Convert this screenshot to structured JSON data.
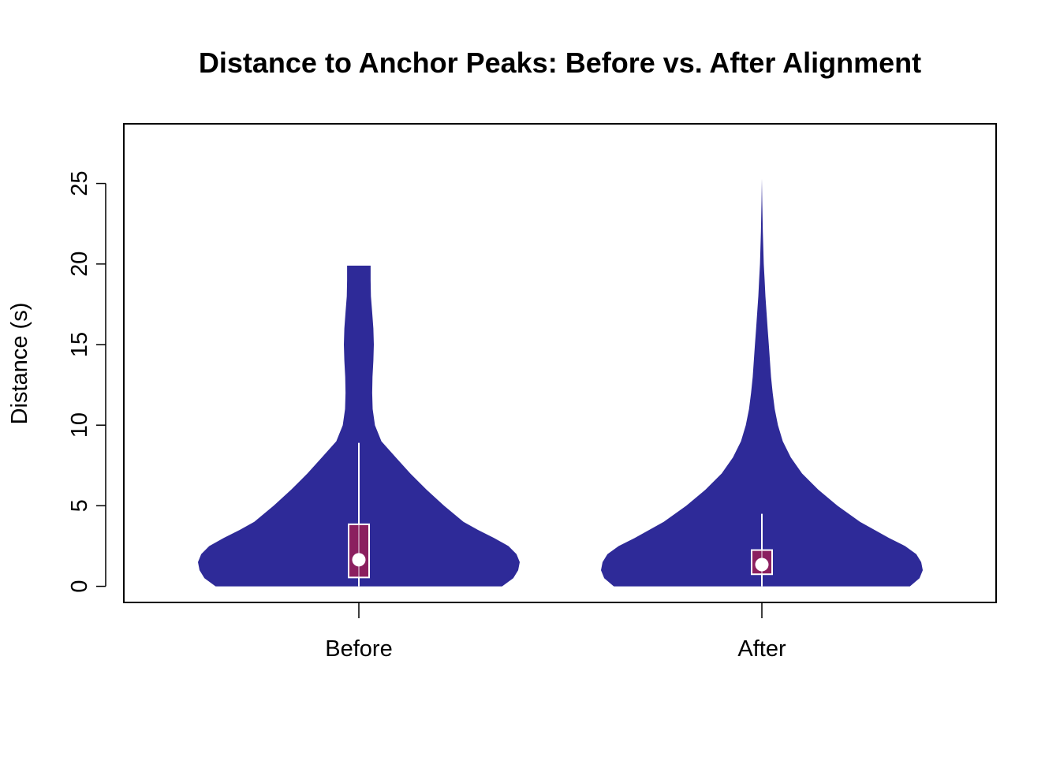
{
  "chart_data": {
    "type": "violin",
    "title": "Distance to Anchor Peaks: Before vs. After Alignment",
    "xlabel": "",
    "ylabel": "Distance (s)",
    "categories": [
      "Before",
      "After"
    ],
    "ylim": [
      -1,
      28.7
    ],
    "yticks": [
      0,
      5,
      10,
      15,
      20,
      25
    ],
    "grid": false,
    "colors": {
      "violin": "#2e2a98",
      "box": "#8b1f5f",
      "whisker": "#ffffff",
      "median": "#ffffff"
    },
    "series": [
      {
        "category": "Before",
        "min": 0,
        "q1": 0.55,
        "median": 1.65,
        "q3": 3.85,
        "whisker_low": 0,
        "whisker_high": 8.9,
        "max": 19.9,
        "density": [
          [
            0,
            0.89
          ],
          [
            0.5,
            0.96
          ],
          [
            1,
            0.99
          ],
          [
            1.5,
            1.0
          ],
          [
            2,
            0.98
          ],
          [
            2.5,
            0.93
          ],
          [
            3,
            0.84
          ],
          [
            3.5,
            0.74
          ],
          [
            4,
            0.65
          ],
          [
            5,
            0.53
          ],
          [
            6,
            0.42
          ],
          [
            7,
            0.32
          ],
          [
            8,
            0.23
          ],
          [
            9,
            0.14
          ],
          [
            10,
            0.1
          ],
          [
            11,
            0.086
          ],
          [
            12,
            0.083
          ],
          [
            13,
            0.085
          ],
          [
            14,
            0.09
          ],
          [
            15,
            0.093
          ],
          [
            16,
            0.09
          ],
          [
            17,
            0.083
          ],
          [
            18,
            0.075
          ],
          [
            19,
            0.073
          ],
          [
            19.9,
            0.073
          ]
        ]
      },
      {
        "category": "After",
        "min": 0,
        "q1": 0.75,
        "median": 1.35,
        "q3": 2.25,
        "whisker_low": 0,
        "whisker_high": 4.5,
        "max": 25.3,
        "density": [
          [
            0,
            0.92
          ],
          [
            0.5,
            0.98
          ],
          [
            1,
            1.0
          ],
          [
            1.5,
            0.99
          ],
          [
            2,
            0.96
          ],
          [
            2.5,
            0.89
          ],
          [
            3,
            0.79
          ],
          [
            3.5,
            0.7
          ],
          [
            4,
            0.61
          ],
          [
            5,
            0.47
          ],
          [
            6,
            0.35
          ],
          [
            7,
            0.25
          ],
          [
            8,
            0.18
          ],
          [
            9,
            0.13
          ],
          [
            10,
            0.1
          ],
          [
            11,
            0.08
          ],
          [
            12,
            0.067
          ],
          [
            13,
            0.057
          ],
          [
            14,
            0.05
          ],
          [
            15,
            0.043
          ],
          [
            16,
            0.036
          ],
          [
            17,
            0.029
          ],
          [
            18,
            0.022
          ],
          [
            19,
            0.017
          ],
          [
            20,
            0.012
          ],
          [
            21,
            0.009
          ],
          [
            22,
            0.006
          ],
          [
            23,
            0.004
          ],
          [
            24,
            0.002
          ],
          [
            25.3,
            0
          ]
        ]
      }
    ]
  }
}
